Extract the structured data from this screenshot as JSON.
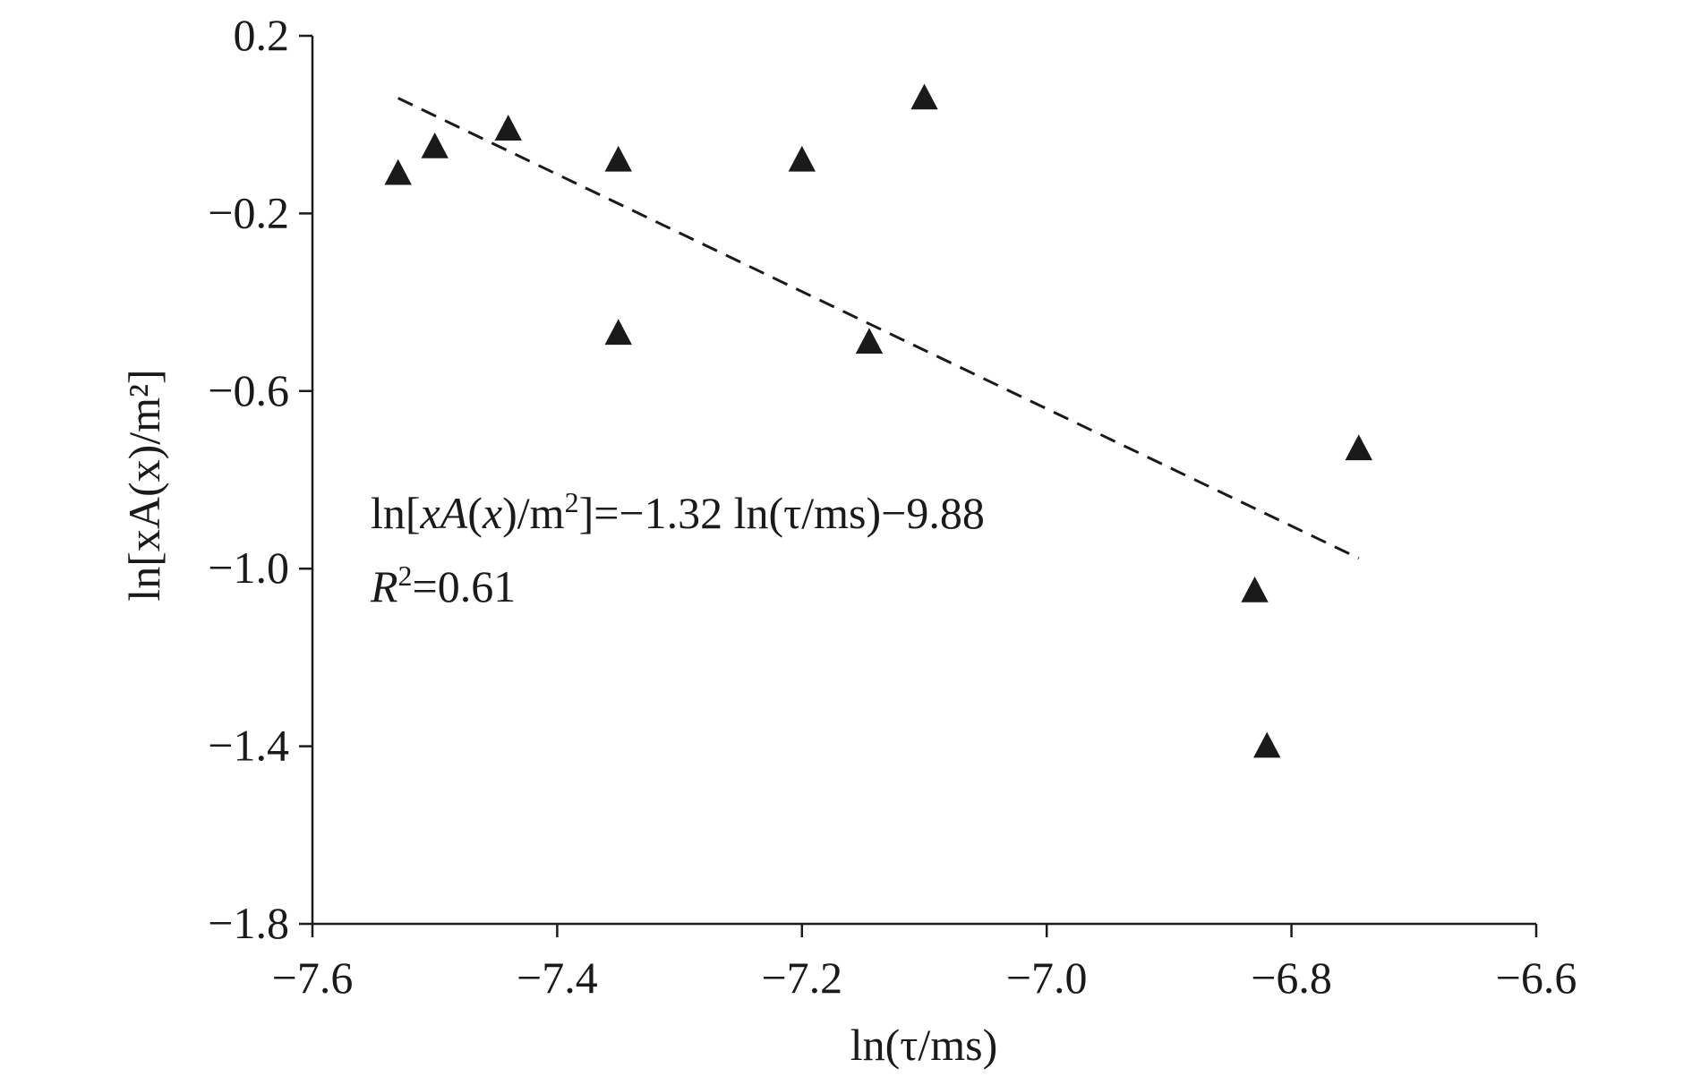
{
  "chart_data": {
    "type": "scatter",
    "xlim": [
      -7.6,
      -6.6
    ],
    "ylim": [
      -1.8,
      0.2
    ],
    "x_ticks": [
      -7.6,
      -7.4,
      -7.2,
      -7.0,
      -6.8,
      -6.6
    ],
    "y_ticks": [
      0.2,
      -0.2,
      -0.6,
      -1.0,
      -1.4,
      -1.8
    ],
    "x_tick_labels": [
      "−7.6",
      "−7.4",
      "−7.2",
      "−7.0",
      "−6.8",
      "−6.6"
    ],
    "y_tick_labels": [
      "0.2",
      "−0.2",
      "−0.6",
      "−1.0",
      "−1.4",
      "−1.8"
    ],
    "xlabel": "ln(τ/ms)",
    "ylabel": "ln[xA(x)/m²]",
    "grid": false,
    "marker": "triangle",
    "color": "#1a1a1a",
    "points": [
      {
        "x": -7.53,
        "y": -0.11
      },
      {
        "x": -7.5,
        "y": -0.05
      },
      {
        "x": -7.44,
        "y": -0.01
      },
      {
        "x": -7.35,
        "y": -0.08
      },
      {
        "x": -7.35,
        "y": -0.47
      },
      {
        "x": -7.2,
        "y": -0.08
      },
      {
        "x": -7.145,
        "y": -0.49
      },
      {
        "x": -7.1,
        "y": 0.06
      },
      {
        "x": -6.83,
        "y": -1.05
      },
      {
        "x": -6.82,
        "y": -1.4
      },
      {
        "x": -6.745,
        "y": -0.73
      }
    ],
    "fit": {
      "slope": -1.32,
      "intercept": -9.88,
      "x_range": [
        -7.53,
        -6.745
      ],
      "style": "dashed",
      "r_squared": 0.61
    },
    "annotations": {
      "equation": {
        "p1": "ln[",
        "v1": "xA",
        "p2": "(",
        "v2": "x",
        "p3": ")/m",
        "sup": "2",
        "p4": "]=−1.32 ln(τ/ms)−9.88"
      },
      "r2": {
        "var": "R",
        "sup": "2",
        "value": "=0.61"
      }
    }
  }
}
